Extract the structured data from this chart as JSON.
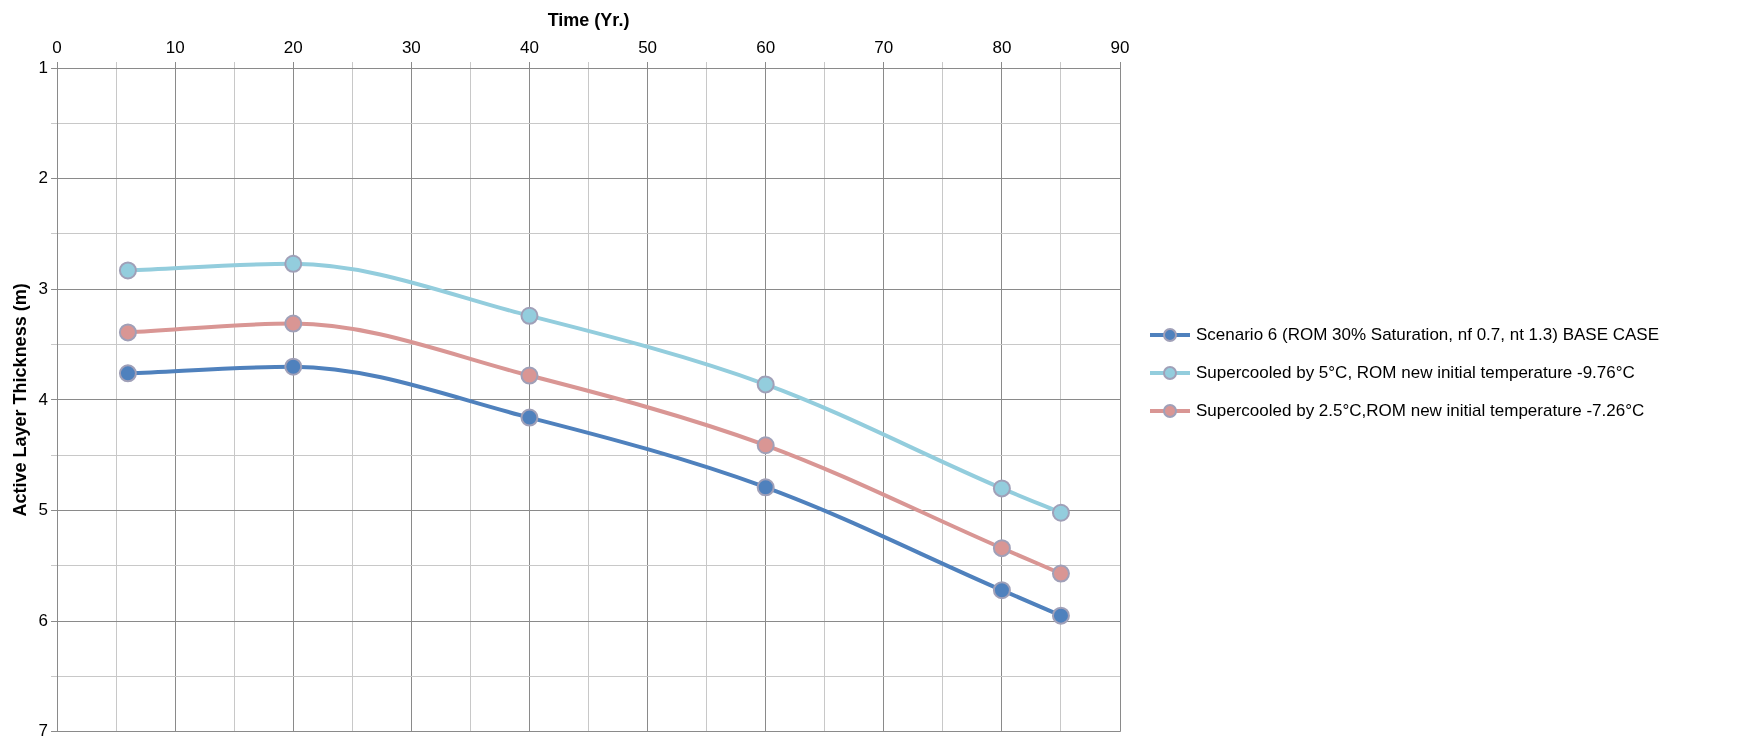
{
  "chart_data": {
    "type": "line",
    "xlabel": "Time (Yr.)",
    "ylabel": "Active Layer Thickness (m)",
    "x": [
      6,
      20,
      40,
      60,
      80,
      85
    ],
    "series": [
      {
        "name": "Scenario 6 (ROM 30% Saturation, nf 0.7, nt 1.3) BASE CASE",
        "color": "#4f81bd",
        "values": [
          3.76,
          3.7,
          4.16,
          4.79,
          5.72,
          5.95
        ]
      },
      {
        "name": "Supercooled by 5°C, ROM new initial temperature -9.76°C",
        "color": "#93cddd",
        "values": [
          2.83,
          2.77,
          3.24,
          3.86,
          4.8,
          5.02
        ]
      },
      {
        "name": "Supercooled by 2.5°C,ROM new initial temperature -7.26°C",
        "color": "#d99694",
        "values": [
          3.39,
          3.31,
          3.78,
          4.41,
          5.34,
          5.57
        ]
      }
    ],
    "xlim": [
      0,
      90
    ],
    "xticks": [
      0,
      {
        "value": 5,
        "label": null
      },
      10,
      {
        "value": 15,
        "label": null
      },
      20,
      {
        "value": 25,
        "label": null
      },
      30,
      {
        "value": 35,
        "label": null
      },
      40,
      {
        "value": 45,
        "label": null
      },
      50,
      {
        "value": 55,
        "label": null
      },
      60,
      {
        "value": 65,
        "label": null
      },
      70,
      {
        "value": 75,
        "label": null
      },
      80,
      {
        "value": 85,
        "label": null
      },
      90
    ],
    "ylim": [
      7,
      1
    ],
    "yticks": [
      1,
      {
        "value": 1.5,
        "label": null
      },
      2,
      {
        "value": 2.5,
        "label": null
      },
      3,
      {
        "value": 3.5,
        "label": null
      },
      4,
      {
        "value": 4.5,
        "label": null
      },
      5,
      {
        "value": 5.5,
        "label": null
      },
      6,
      {
        "value": 6.5,
        "label": null
      },
      7
    ],
    "grid": true,
    "legend": "right",
    "marker": "circle",
    "line_style": "solid"
  }
}
